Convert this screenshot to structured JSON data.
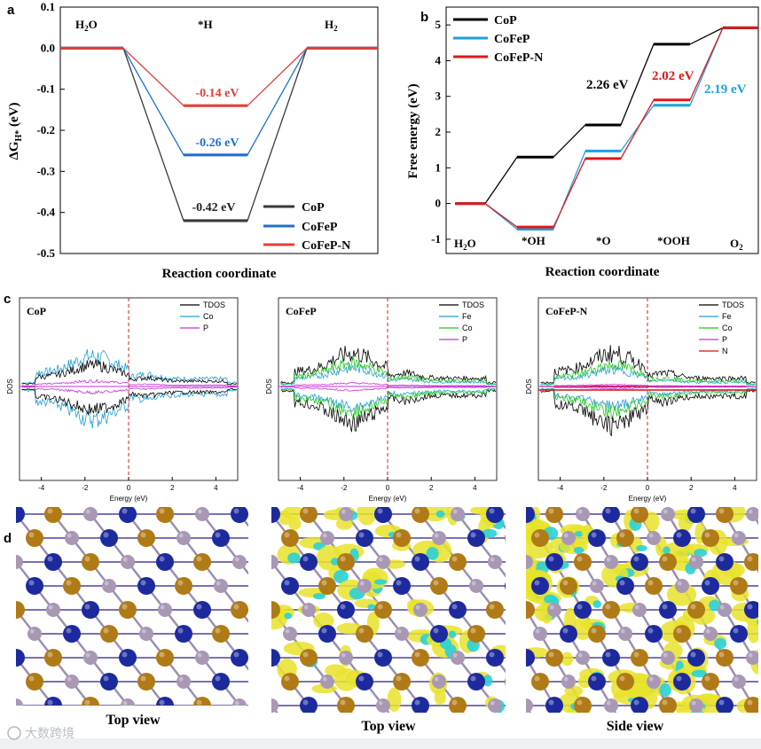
{
  "colors": {
    "CoP": "#3a3a3a",
    "CoFeP": "#1f6fd0",
    "CoFeP_N": "#e0403a",
    "CoP_b": "#000000",
    "CoFeP_b": "#1fa0e0",
    "CoFeP_N_b": "#e01818",
    "TDOS": "#000000",
    "Co_dos": "#1f9fd8",
    "Fe_dos": "#1f9fd8",
    "Co_green": "#22c81e",
    "P_dos": "#c832d8",
    "N_dos": "#d41010",
    "fermi": "#d42020"
  },
  "panels": {
    "a": "a",
    "b": "b",
    "c": "c",
    "d": "d"
  },
  "chart_data": [
    {
      "id": "a",
      "type": "line",
      "title": "",
      "xlabel": "Reaction coordinate",
      "ylabel": "ΔG",
      "ylabel_sub": "H*",
      "ylabel_unit": " (eV)",
      "ylim": [
        -0.5,
        0.1
      ],
      "yticks": [
        "0.1",
        "0.0",
        "-0.1",
        "-0.2",
        "-0.3",
        "-0.4",
        "-0.5"
      ],
      "ytick_values": [
        0.1,
        0.0,
        -0.1,
        -0.2,
        -0.3,
        -0.4,
        -0.5
      ],
      "states": [
        "H2O",
        "*H",
        "H2"
      ],
      "state_labels": {
        "h2o_main": "H",
        "h2o_sub": "2",
        "h2o_tail": "O",
        "h": "*H",
        "h2_main": "H",
        "h2_sub": "2"
      },
      "series": [
        {
          "name": "CoP",
          "values": [
            0,
            -0.42,
            0
          ],
          "label": "-0.42 eV"
        },
        {
          "name": "CoFeP",
          "values": [
            0,
            -0.26,
            0
          ],
          "label": "-0.26 eV"
        },
        {
          "name": "CoFeP-N",
          "values": [
            0,
            -0.14,
            0
          ],
          "label": "-0.14 eV"
        }
      ],
      "legend": [
        "CoP",
        "CoFeP",
        "CoFeP-N"
      ]
    },
    {
      "id": "b",
      "type": "line",
      "xlabel": "Reaction coordinate",
      "ylabel": "Free energy (eV)",
      "ylim": [
        -1,
        5
      ],
      "yticks": [
        "5",
        "4",
        "3",
        "2",
        "1",
        "0",
        "-1"
      ],
      "ytick_values": [
        5,
        4,
        3,
        2,
        1,
        0,
        -1
      ],
      "states": [
        "H2O",
        "*OH",
        "*O",
        "*OOH",
        "O2"
      ],
      "state_labels": {
        "h2o_main": "H",
        "h2o_sub": "2",
        "h2o_tail": "O",
        "oh": "*OH",
        "o": "*O",
        "ooh": "*OOH",
        "o2_main": "O",
        "o2_sub": "2"
      },
      "series": [
        {
          "name": "CoP",
          "values": [
            0,
            1.3,
            2.2,
            4.46,
            4.92
          ]
        },
        {
          "name": "CoFeP",
          "values": [
            0,
            -0.72,
            1.47,
            2.75,
            4.92
          ]
        },
        {
          "name": "CoFeP-N",
          "values": [
            0,
            -0.66,
            1.26,
            2.9,
            4.92
          ]
        }
      ],
      "annotations": [
        "2.26 eV",
        "2.02 eV",
        "2.19 eV"
      ],
      "legend": [
        "CoP",
        "CoFeP",
        "CoFeP-N"
      ]
    },
    {
      "id": "c",
      "type": "line",
      "xlabel": "Energy (eV)",
      "ylabel": "DOS",
      "xlim": [
        -5,
        5
      ],
      "xticks": [
        "-4",
        "-2",
        "0",
        "2",
        "4"
      ],
      "subplots": [
        {
          "title": "CoP",
          "legend": [
            "TDOS",
            "Co",
            "P"
          ]
        },
        {
          "title": "CoFeP",
          "legend": [
            "TDOS",
            "Fe",
            "Co",
            "P"
          ]
        },
        {
          "title": "CoFeP-N",
          "legend": [
            "TDOS",
            "Fe",
            "Co",
            "P",
            "N"
          ]
        }
      ]
    }
  ],
  "panel_d": {
    "captions": [
      "Top view",
      "Top view",
      "Side view"
    ]
  },
  "watermark": "大数跨境"
}
